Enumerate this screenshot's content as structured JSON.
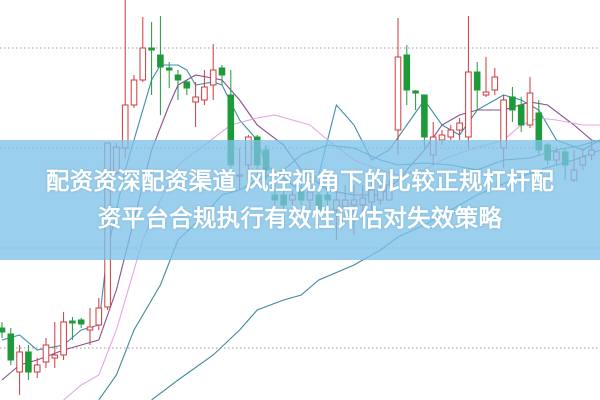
{
  "headline": {
    "line1": "配资资深配资渠道 风控视角下的比较正规杠杆配",
    "line2": "资平台合规执行有效性评估对失效策略"
  },
  "colors": {
    "up": "#d0393d",
    "down": "#1f9a3a",
    "ma5": "#3c8fa8",
    "ma10": "#8a4f8e",
    "ma20": "#e7a5e6",
    "ma30": "#3d8c93",
    "ma60": "#3f8a9f",
    "grid": "#9a9a9a",
    "banner": "#7dc1e8"
  },
  "chart_data": {
    "type": "candlestick",
    "title": "",
    "xlabel": "",
    "ylabel": "",
    "ylim": [
      0,
      40
    ],
    "grid": true,
    "gridlines_y": [
      35.2,
      25.2,
      15.2,
      5.2
    ],
    "candles": [
      [
        7.2,
        6.8,
        7.8,
        6.2
      ],
      [
        6.6,
        4.0,
        7.2,
        3.5
      ],
      [
        2.8,
        4.8,
        5.5,
        0.5
      ],
      [
        4.8,
        2.8,
        5.5,
        2.0
      ],
      [
        2.8,
        3.5,
        4.2,
        2.2
      ],
      [
        3.8,
        5.5,
        6.2,
        3.2
      ],
      [
        4.2,
        4.5,
        7.8,
        3.2
      ],
      [
        4.5,
        7.8,
        8.8,
        4.0
      ],
      [
        7.9,
        7.7,
        8.3,
        6.0
      ],
      [
        8.0,
        7.6,
        8.2,
        7.2
      ],
      [
        7.0,
        7.3,
        9.2,
        5.5
      ],
      [
        7.5,
        9.2,
        10.2,
        7.0
      ],
      [
        9.3,
        25.7,
        25.7,
        9.0
      ],
      [
        22.7,
        25.3,
        25.7,
        22.5
      ],
      [
        25.2,
        29.5,
        40,
        24.2
      ],
      [
        29.5,
        32.0,
        32.5,
        29.2
      ],
      [
        32.0,
        35.2,
        38.3,
        31.8
      ],
      [
        35.2,
        35.0,
        37.8,
        30.5
      ],
      [
        34.5,
        33.3,
        38.4,
        28.5
      ],
      [
        33.2,
        33.0,
        33.8,
        31.2
      ],
      [
        32.5,
        32.0,
        33.0,
        30.0
      ],
      [
        31.8,
        31.2,
        32.0,
        30.5
      ],
      [
        29.8,
        30.3,
        31.8,
        27.3
      ],
      [
        30.0,
        31.3,
        33.0,
        29.5
      ],
      [
        31.5,
        33.0,
        35.6,
        30.0
      ],
      [
        33.2,
        32.5,
        33.5,
        31.5
      ],
      [
        30.5,
        23.5,
        33.0,
        22.5
      ],
      [
        22.4,
        22.5,
        25.2,
        21.0
      ],
      [
        23.5,
        26.3,
        26.5,
        22.5
      ],
      [
        26.3,
        23.5,
        26.5,
        22.5
      ],
      [
        25.0,
        23.0,
        25.5,
        22.0
      ],
      [
        20.5,
        20.0,
        22.0,
        19.5
      ],
      [
        20.5,
        19.5,
        21.5,
        19.0
      ],
      [
        20.0,
        20.5,
        21.0,
        19.5
      ],
      [
        21.0,
        20.0,
        22.0,
        19.5
      ],
      [
        20.0,
        20.8,
        21.5,
        19.0
      ],
      [
        20.5,
        19.0,
        21.0,
        18.5
      ],
      [
        20.5,
        20.0,
        22.0,
        19.5
      ],
      [
        19.0,
        20.0,
        21.5,
        16.0
      ],
      [
        19.3,
        20.0,
        21.5,
        18.0
      ],
      [
        19.5,
        20.0,
        21.5,
        16.5
      ],
      [
        19.5,
        20.2,
        21.5,
        18.0
      ],
      [
        19.8,
        21.0,
        22.0,
        19.0
      ],
      [
        20.0,
        21.0,
        21.5,
        19.5
      ],
      [
        20.0,
        21.5,
        22.0,
        20.0
      ],
      [
        27.0,
        34.3,
        38.2,
        24.5
      ],
      [
        34.5,
        31.0,
        35.5,
        29.5
      ],
      [
        30.9,
        30.7,
        31.0,
        29.0
      ],
      [
        30.5,
        26.3,
        30.5,
        25.2
      ],
      [
        24.5,
        26.3,
        27.8,
        23.5
      ],
      [
        26.0,
        26.5,
        27.0,
        25.5
      ],
      [
        26.3,
        27.0,
        27.5,
        26.0
      ],
      [
        27.0,
        27.7,
        28.2,
        26.0
      ],
      [
        26.3,
        32.8,
        38.4,
        25.2
      ],
      [
        32.8,
        31.0,
        33.8,
        29.0
      ],
      [
        30.5,
        30.8,
        34.3,
        30.3
      ],
      [
        31.0,
        32.3,
        33.2,
        30.5
      ],
      [
        25.2,
        30.0,
        30.5,
        23.2
      ],
      [
        30.3,
        29.0,
        31.3,
        27.8
      ],
      [
        29.5,
        27.5,
        30.3,
        26.8
      ],
      [
        27.5,
        30.7,
        32.3,
        27.2
      ],
      [
        28.7,
        25.0,
        30.0,
        24.5
      ],
      [
        25.5,
        24.0,
        25.7,
        23.5
      ],
      [
        24.0,
        24.8,
        25.2,
        23.5
      ],
      [
        24.8,
        23.5,
        25.2,
        22.0
      ],
      [
        22.0,
        23.0,
        25.0,
        21.8
      ],
      [
        23.5,
        24.3,
        25.2,
        23.0
      ],
      [
        24.5,
        25.0,
        26.0,
        24.0
      ]
    ],
    "candle_fields": [
      "open",
      "close",
      "high",
      "low"
    ],
    "moving_averages": [
      {
        "key": "ma5",
        "points": [
          [
            0,
            6
          ],
          [
            2,
            6.5
          ],
          [
            4,
            5
          ],
          [
            7,
            5.5
          ],
          [
            9,
            7
          ],
          [
            11,
            7.5
          ],
          [
            12,
            15
          ],
          [
            14,
            23
          ],
          [
            16,
            29
          ],
          [
            17,
            32
          ],
          [
            18,
            33.5
          ],
          [
            20,
            33.5
          ],
          [
            21,
            33
          ],
          [
            22,
            31.5
          ],
          [
            24,
            31.8
          ],
          [
            25,
            31.5
          ],
          [
            27,
            28
          ],
          [
            29,
            26
          ],
          [
            30,
            23.5
          ],
          [
            33,
            21.5
          ],
          [
            34,
            21
          ],
          [
            36,
            22.5
          ],
          [
            38,
            29.5
          ],
          [
            40,
            27.5
          ],
          [
            42,
            24
          ],
          [
            44,
            25
          ],
          [
            46,
            27.5
          ],
          [
            48,
            30
          ],
          [
            50,
            27.5
          ],
          [
            52,
            26.5
          ],
          [
            54,
            29
          ],
          [
            57,
            30.5
          ],
          [
            59,
            30
          ],
          [
            61,
            29
          ],
          [
            63,
            26
          ],
          [
            66,
            25
          ],
          [
            68,
            26
          ]
        ]
      },
      {
        "key": "ma10",
        "points": [
          [
            0,
            2
          ],
          [
            2,
            3.5
          ],
          [
            4,
            4
          ],
          [
            7,
            5
          ],
          [
            9,
            5.5
          ],
          [
            11,
            6
          ],
          [
            13,
            11
          ],
          [
            15,
            18
          ],
          [
            17,
            25
          ],
          [
            19,
            29.5
          ],
          [
            20,
            31.5
          ],
          [
            22,
            32.5
          ],
          [
            25,
            32
          ],
          [
            27,
            30
          ],
          [
            29,
            27.5
          ],
          [
            32,
            25.5
          ],
          [
            34,
            23
          ],
          [
            37,
            21
          ],
          [
            40,
            20.5
          ],
          [
            43,
            20.5
          ],
          [
            45,
            22
          ],
          [
            48,
            25
          ],
          [
            50,
            27.5
          ],
          [
            52,
            28.5
          ],
          [
            54,
            29
          ],
          [
            57,
            29
          ],
          [
            60,
            29.8
          ],
          [
            62,
            29.5
          ],
          [
            65,
            27.5
          ],
          [
            67,
            26
          ],
          [
            68,
            25.8
          ]
        ]
      },
      {
        "key": "ma20",
        "points": [
          [
            7,
            0
          ],
          [
            9,
            1.5
          ],
          [
            11,
            2.5
          ],
          [
            13,
            7
          ],
          [
            16,
            16
          ],
          [
            18,
            20
          ],
          [
            20,
            23.5
          ],
          [
            23,
            25.5
          ],
          [
            26,
            27.5
          ],
          [
            29,
            28.2
          ],
          [
            31,
            28.5
          ],
          [
            33,
            28
          ],
          [
            35,
            27.5
          ],
          [
            37,
            26
          ],
          [
            40,
            24
          ],
          [
            43,
            23
          ],
          [
            45,
            22.5
          ],
          [
            48,
            23
          ],
          [
            50,
            24
          ],
          [
            53,
            25
          ],
          [
            57,
            26
          ],
          [
            59,
            27.5
          ],
          [
            61,
            28.2
          ],
          [
            63,
            28
          ],
          [
            66,
            27.5
          ],
          [
            68,
            27.5
          ]
        ]
      },
      {
        "key": "ma30",
        "points": [
          [
            11,
            0
          ],
          [
            13,
            2.5
          ],
          [
            15,
            7
          ],
          [
            18,
            11.5
          ],
          [
            20,
            16
          ],
          [
            23,
            18.5
          ],
          [
            25,
            20.5
          ],
          [
            27,
            21
          ],
          [
            29,
            22
          ],
          [
            32,
            23
          ],
          [
            34,
            24.5
          ],
          [
            37,
            25.5
          ],
          [
            40,
            25.2
          ],
          [
            43,
            24
          ],
          [
            45,
            23.5
          ],
          [
            48,
            23.7
          ],
          [
            51,
            23.5
          ],
          [
            54,
            23
          ],
          [
            57,
            24
          ],
          [
            60,
            24.2
          ],
          [
            63,
            25
          ],
          [
            66,
            25.5
          ],
          [
            68,
            26
          ]
        ]
      },
      {
        "key": "ma60",
        "points": [
          [
            17,
            0
          ],
          [
            20,
            2
          ],
          [
            24,
            4.5
          ],
          [
            27,
            7
          ],
          [
            29,
            9
          ],
          [
            32,
            10
          ],
          [
            34,
            10.5
          ],
          [
            36,
            12
          ],
          [
            40,
            13.5
          ],
          [
            43,
            15
          ],
          [
            45,
            16.3
          ],
          [
            48,
            17.5
          ],
          [
            51,
            19
          ],
          [
            54,
            20.5
          ],
          [
            58,
            22
          ],
          [
            61,
            23
          ],
          [
            65,
            24
          ],
          [
            68,
            25
          ]
        ]
      }
    ]
  }
}
